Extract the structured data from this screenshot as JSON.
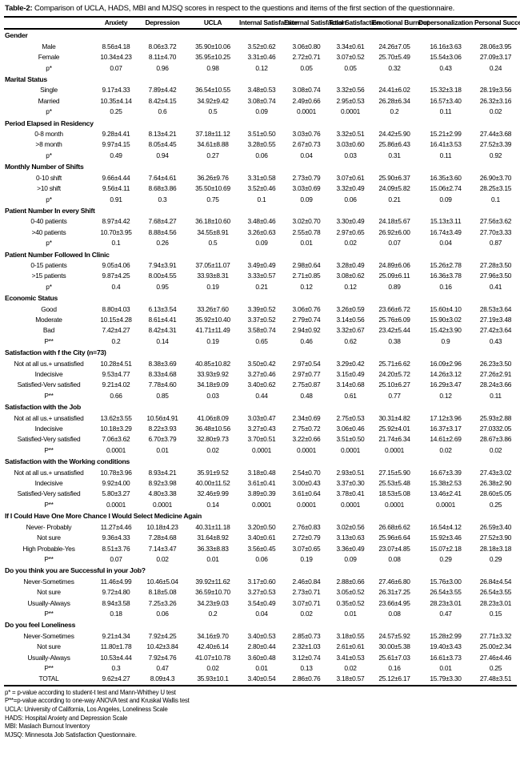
{
  "table": {
    "title_label": "Table-2:",
    "title_text": "Comparison of UCLA, HADS, MBI and MJSQ scores in respect to the questions and items of the first section of the questionnaire.",
    "columns": [
      "Anxiety",
      "Depression",
      "UCLA",
      "Internal Satisfaction",
      "External Satisfaction",
      "Total Satisfaction",
      "Emotional Burnout",
      "Depersonalization",
      "Personal Success"
    ],
    "sections": [
      {
        "header": "Gender",
        "rows": [
          {
            "label": "Male",
            "values": [
              "8.56±4.18",
              "8.06±3.72",
              "35.90±10.06",
              "3.52±0.62",
              "3.06±0.80",
              "3.34±0.61",
              "24.26±7.05",
              "16.16±3.63",
              "28.06±3.95"
            ]
          },
          {
            "label": "Female",
            "values": [
              "10.34±4.23",
              "8.11±4.70",
              "35.95±10.25",
              "3.31±0.46",
              "2.72±0.71",
              "3.07±0.52",
              "25.70±5.49",
              "15.54±3.06",
              "27.09±3.17"
            ]
          },
          {
            "label": "p*",
            "values": [
              "0.07",
              "0.96",
              "0.98",
              "0.12",
              "0.05",
              "0.05",
              "0.32",
              "0.43",
              "0.24"
            ]
          }
        ]
      },
      {
        "header": "Marital Status",
        "rows": [
          {
            "label": "Single",
            "values": [
              "9.17±4.33",
              "7.89±4.42",
              "36.54±10.55",
              "3.48±0.53",
              "3.08±0.74",
              "3.32±0.56",
              "24.41±6.02",
              "15.32±3.18",
              "28.19±3.56"
            ]
          },
          {
            "label": "Married",
            "values": [
              "10.35±4.14",
              "8.42±4.15",
              "34.92±9.42",
              "3.08±0.74",
              "2.49±0.66",
              "2.95±0.53",
              "26.28±6.34",
              "16.57±3.40",
              "26.32±3.16"
            ]
          },
          {
            "label": "p*",
            "values": [
              "0.25",
              "0.6",
              "0.5",
              "0.09",
              "0.0001",
              "0.0001",
              "0.2",
              "0.11",
              "0.02"
            ]
          }
        ]
      },
      {
        "header": "Period Elapsed in Residency",
        "rows": [
          {
            "label": "0-8 month",
            "values": [
              "9.28±4.41",
              "8.13±4.21",
              "37.18±11.12",
              "3.51±0.50",
              "3.03±0.76",
              "3.32±0.51",
              "24.42±5.90",
              "15.21±2.99",
              "27.44±3.68"
            ]
          },
          {
            "label": ">8 month",
            "values": [
              "9.97±4.15",
              "8.05±4.45",
              "34.61±8.88",
              "3.28±0.55",
              "2.67±0.73",
              "3.03±0.60",
              "25.86±6.43",
              "16.41±3.53",
              "27.52±3.39"
            ]
          },
          {
            "label": "p*",
            "values": [
              "0.49",
              "0.94",
              "0.27",
              "0.06",
              "0.04",
              "0.03",
              "0.31",
              "0.11",
              "0.92"
            ]
          }
        ]
      },
      {
        "header": "Monthly Number of Shifts",
        "rows": [
          {
            "label": "0-10 shift",
            "values": [
              "9.66±4.44",
              "7.64±4.61",
              "36.26±9.76",
              "3.31±0.58",
              "2.73±0.79",
              "3.07±0.61",
              "25.90±6.37",
              "16.35±3.60",
              "26.90±3.70"
            ]
          },
          {
            "label": ">10 shift",
            "values": [
              "9.56±4.11",
              "8.68±3.86",
              "35.50±10.69",
              "3.52±0.46",
              "3.03±0.69",
              "3.32±0.49",
              "24.09±5.82",
              "15.06±2.74",
              "28.25±3.15"
            ]
          },
          {
            "label": "p*",
            "values": [
              "0.91",
              "0.3",
              "0.75",
              "0.1",
              "0.09",
              "0.06",
              "0.21",
              "0.09",
              "0.1"
            ]
          }
        ]
      },
      {
        "header": "Patient Number In every Shift",
        "rows": [
          {
            "label": "0-40 patients",
            "values": [
              "8.97±4.42",
              "7.68±4.27",
              "36.18±10.60",
              "3.48±0.46",
              "3.02±0.70",
              "3.30±0.49",
              "24.18±5.67",
              "15.13±3.11",
              "27.56±3.62"
            ]
          },
          {
            "label": ">40 patients",
            "values": [
              "10.70±3.95",
              "8.88±4.56",
              "34.55±8.91",
              "3.26±0.63",
              "2.55±0.78",
              "2.97±0.65",
              "26.92±6.00",
              "16.74±3.49",
              "27.70±3.33"
            ]
          },
          {
            "label": "p*",
            "values": [
              "0.1",
              "0.26",
              "0.5",
              "0.09",
              "0.01",
              "0.02",
              "0.07",
              "0.04",
              "0.87"
            ]
          }
        ]
      },
      {
        "header": "Patient Number Followed In Clinic",
        "rows": [
          {
            "label": "0-15 patients",
            "values": [
              "9.05±4.06",
              "7.94±3.91",
              "37.05±11.07",
              "3.49±0.49",
              "2.98±0.64",
              "3.28±0.49",
              "24.89±6.06",
              "15.26±2.78",
              "27.28±3.50"
            ]
          },
          {
            "label": ">15 patients",
            "values": [
              "9.87±4.25",
              "8.00±4.55",
              "33.93±8.31",
              "3.33±0.57",
              "2.71±0.85",
              "3.08±0.62",
              "25.09±6.11",
              "16.36±3.78",
              "27.96±3.50"
            ]
          },
          {
            "label": "p*",
            "values": [
              "0.4",
              "0.95",
              "0.19",
              "0.21",
              "0.12",
              "0.12",
              "0.89",
              "0.16",
              "0.41"
            ]
          }
        ]
      },
      {
        "header": "Economic Status",
        "rows": [
          {
            "label": "Good",
            "values": [
              "8.80±4.03",
              "6.13±3.54",
              "33.26±7.60",
              "3.39±0.52",
              "3.06±0.76",
              "3.26±0.59",
              "23.66±6.72",
              "15.60±4.10",
              "28.53±3.64"
            ]
          },
          {
            "label": "Moderate",
            "values": [
              "10.15±4.28",
              "8.61±4.41",
              "35.92±10.40",
              "3.37±0.52",
              "2.79±0.74",
              "3.14±0.56",
              "25.76±6.09",
              "15.90±3.02",
              "27.19±3.48"
            ]
          },
          {
            "label": "Bad",
            "values": [
              "7.42±4.27",
              "8.42±4.31",
              "41.71±11.49",
              "3.58±0.74",
              "2.94±0.92",
              "3.32±0.67",
              "23.42±5.44",
              "15.42±3.90",
              "27.42±3.64"
            ]
          },
          {
            "label": "P**",
            "values": [
              "0.2",
              "0.14",
              "0.19",
              "0.65",
              "0.46",
              "0.62",
              "0.38",
              "0.9",
              "0.43"
            ]
          }
        ]
      },
      {
        "header": "Satisfaction with f the City  (n=73)",
        "rows": [
          {
            "label": "Not at all us.+ unsatisfied",
            "values": [
              "10.28±4.51",
              "8.38±3.69",
              "40.85±10.82",
              "3.50±0.42",
              "2.97±0.54",
              "3.29±0.42",
              "25.71±6.62",
              "16.09±2.96",
              "26.23±3.50"
            ]
          },
          {
            "label": "Indecisive",
            "values": [
              "9.53±4.77",
              "8.33±4.68",
              "33.93±9.92",
              "3.27±0.46",
              "2.97±0.77",
              "3.15±0.49",
              "24.20±5.72",
              "14.26±3.12",
              "27.26±2.91"
            ]
          },
          {
            "label": "Satisfied-Verv satisfied",
            "values": [
              "9.21±4.02",
              "7.78±4.60",
              "34.18±9.09",
              "3.40±0.62",
              "2.75±0.87",
              "3.14±0.68",
              "25.10±6.27",
              "16.29±3.47",
              "28.24±3.66"
            ]
          },
          {
            "label": "P**",
            "values": [
              "0.66",
              "0.85",
              "0.03",
              "0.44",
              "0.48",
              "0.61",
              "0.77",
              "0.12",
              "0.11"
            ]
          }
        ]
      },
      {
        "header": "Satisfaction with  the Job",
        "rows": [
          {
            "label": "Not at all us.+ unsatisfied",
            "values": [
              "13.62±3.55",
              "10.56±4.91",
              "41.06±8.09",
              "3.03±0.47",
              "2.34±0.69",
              "2.75±0.53",
              "30.31±4.82",
              "17.12±3.96",
              "25.93±2.88"
            ]
          },
          {
            "label": "Indecisive",
            "values": [
              "10.18±3.29",
              "8.22±3.93",
              "36.48±10.56",
              "3.27±0.43",
              "2.75±0.72",
              "3.06±0.46",
              "25.92±4.01",
              "16.37±3.17",
              "27.0332.05"
            ]
          },
          {
            "label": "Satisfied-Very satisfied",
            "values": [
              "7.06±3.62",
              "6.70±3.79",
              "32.80±9.73",
              "3.70±0.51",
              "3.22±0.66",
              "3.51±0.50",
              "21.74±6.34",
              "14.61±2.69",
              "28.67±3.86"
            ]
          },
          {
            "label": "P**",
            "values": [
              "0.0001",
              "0.01",
              "0.02",
              "0.0001",
              "0.0001",
              "0.0001",
              "0.0001",
              "0.02",
              "0.02"
            ]
          }
        ]
      },
      {
        "header": "Satisfaction with the Working conditions",
        "rows": [
          {
            "label": "Not at all us.+ unsatisfied",
            "values": [
              "10.78±3.96",
              "8.93±4.21",
              "35.91±9.52",
              "3.18±0.48",
              "2.54±0.70",
              "2.93±0.51",
              "27.15±5.90",
              "16.67±3.39",
              "27.43±3.02"
            ]
          },
          {
            "label": "Indecisive",
            "values": [
              "9.92±4.00",
              "8.92±3.98",
              "40.00±11.52",
              "3.61±0.41",
              "3.00±0.43",
              "3.37±0.30",
              "25.53±5.48",
              "15.38±2.53",
              "26.38±2.90"
            ]
          },
          {
            "label": "Satisfied-Very satisfied",
            "values": [
              "5.80±3.27",
              "4.80±3.38",
              "32.46±9.99",
              "3.89±0.39",
              "3.61±0.64",
              "3.78±0.41",
              "18.53±5.08",
              "13.46±2.41",
              "28.60±5.05"
            ]
          },
          {
            "label": "P**",
            "values": [
              "0.0001",
              "0.0001",
              "0.14",
              "0.0001",
              "0.0001",
              "0.0001",
              "0.0001",
              "0.0001",
              "0.25"
            ]
          }
        ]
      },
      {
        "header": "If I Could Have One More Chance I Would Select Medicine Again",
        "rows": [
          {
            "label": "Never- Probably",
            "values": [
              "11.27±4.46",
              "10.18±4.23",
              "40.31±11.18",
              "3.20±0.50",
              "2.76±0.83",
              "3.02±0.56",
              "26.68±6.62",
              "16.54±4.12",
              "26.59±3.40"
            ]
          },
          {
            "label": "Not sure",
            "values": [
              "9.36±4.33",
              "7.28±4.68",
              "31.64±8.92",
              "3.40±0.61",
              "2.72±0.79",
              "3.13±0.63",
              "25.96±6.64",
              "15.92±3.46",
              "27.52±3.90"
            ]
          },
          {
            "label": "High Probable-Yes",
            "values": [
              "8.51±3.76",
              "7.14±3.47",
              "36.33±8.83",
              "3.56±0.45",
              "3.07±0.65",
              "3.36±0.49",
              "23.07±4.85",
              "15.07±2.18",
              "28.18±3.18"
            ]
          },
          {
            "label": "P**",
            "values": [
              "0.07",
              "0.02",
              "0.01",
              "0.06",
              "0.19",
              "0.09",
              "0.08",
              "0.29",
              "0.29"
            ]
          }
        ]
      },
      {
        "header": "Do you think you are  Successful in your Job?",
        "rows": [
          {
            "label": "Never-Sometimes",
            "values": [
              "11.46±4.99",
              "10.46±5.04",
              "39.92±11.62",
              "3.17±0.60",
              "2.46±0.84",
              "2.88±0.66",
              "27.46±6.80",
              "15.76±3.00",
              "26.84±4.54"
            ]
          },
          {
            "label": "Not sure",
            "values": [
              "9.72±4.80",
              "8.18±5.08",
              "36.59±10.70",
              "3.27±0.53",
              "2.73±0.71",
              "3.05±0.52",
              "26.31±7.25",
              "26.54±3.55",
              "26.54±3.55"
            ]
          },
          {
            "label": "Usually-Always",
            "values": [
              "8.94±3.58",
              "7.25±3.26",
              "34.23±9.03",
              "3.54±0.49",
              "3.07±0.71",
              "0.35±0.52",
              "23.66±4.95",
              "28.23±3.01",
              "28.23±3.01"
            ]
          },
          {
            "label": "P**",
            "values": [
              "0.18",
              "0.06",
              "0.2",
              "0.04",
              "0.02",
              "0.01",
              "0.08",
              "0.47",
              "0.15"
            ]
          }
        ]
      },
      {
        "header": "Do you  feel  Loneliness",
        "rows": [
          {
            "label": "Never-Sometimes",
            "values": [
              "9.21±4.34",
              "7.92±4.25",
              "34.16±9.70",
              "3.40±0.53",
              "2.85±0.73",
              "3.18±0.55",
              "24.57±5.92",
              "15.28±2.99",
              "27.71±3.32"
            ]
          },
          {
            "label": "Not sure",
            "values": [
              "11.80±1.78",
              "10.42±3.84",
              "42.40±6.14",
              "2.80±0.44",
              "2.32±1.03",
              "2.61±0.61",
              "30.00±5.38",
              "19.40±3.43",
              "25.00±2.34"
            ]
          },
          {
            "label": "Usually-Always",
            "values": [
              "10.53±4.44",
              "7.92±4.76",
              "41.07±10.78",
              "3.60±0.48",
              "3.12±0.74",
              "3.41±0.53",
              "25.61±7.03",
              "16.61±3.73",
              "27.46±4.46"
            ]
          },
          {
            "label": "P**",
            "values": [
              "0.3",
              "0.47",
              "0.02",
              "0.01",
              "0.13",
              "0.02",
              "0.16",
              "0.01",
              "0.25"
            ]
          }
        ]
      }
    ],
    "total_row": {
      "label": "TOTAL",
      "values": [
        "9.62±4.27",
        "8.09±4.3",
        "35.93±10.1",
        "3.40±0.54",
        "2.86±0.76",
        "3.18±0.57",
        "25.12±6.17",
        "15.79±3.30",
        "27.48±3.51"
      ]
    },
    "footnotes": [
      "p* = p-value according to student-t test and Mann-Whithey U test",
      "P**=p-value according to one-way ANOVA test and Kruskal Wallis test",
      "UCLA: University of California, Los Angeles, Loneliness Scale",
      "HADS: Hospital Anxiety and Depression Scale",
      "MBI: Maslach Burnout Inventory",
      "MJSQ: Minnesota Job Satisfaction Questionnaire."
    ]
  }
}
